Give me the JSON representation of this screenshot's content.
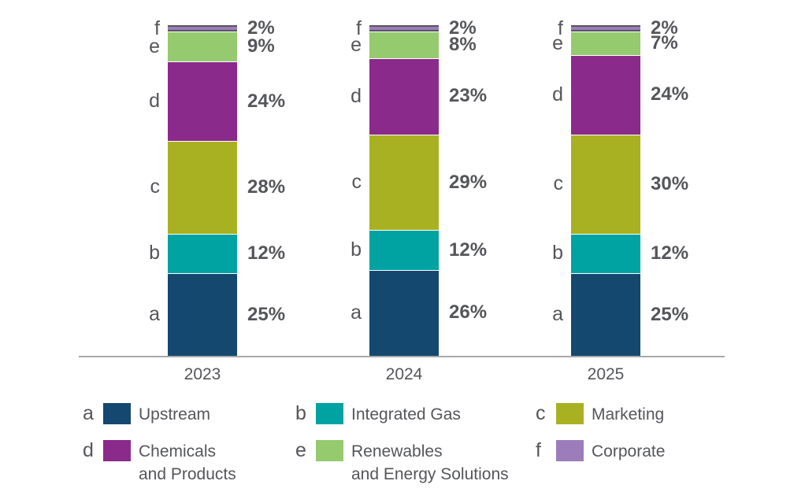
{
  "chart_data": {
    "type": "bar",
    "stacked": true,
    "title": "",
    "unit": "%",
    "categories": [
      "2023",
      "2024",
      "2025"
    ],
    "series": [
      {
        "key": "a",
        "name": "Upstream",
        "color": "#14486f",
        "values": [
          25,
          26,
          25
        ]
      },
      {
        "key": "b",
        "name": "Integrated Gas",
        "color": "#00a3a1",
        "values": [
          12,
          12,
          12
        ]
      },
      {
        "key": "c",
        "name": "Marketing",
        "color": "#a8b122",
        "values": [
          28,
          29,
          30
        ]
      },
      {
        "key": "d",
        "name": "Chemicals\nand Products",
        "color": "#8a2a8b",
        "values": [
          24,
          23,
          24
        ]
      },
      {
        "key": "e",
        "name": "Renewables\nand Energy Solutions",
        "color": "#95ca6e",
        "values": [
          9,
          8,
          7
        ]
      },
      {
        "key": "f",
        "name": "Corporate",
        "color": "#9c7dba",
        "values": [
          2,
          2,
          2
        ]
      }
    ],
    "value_labels": true,
    "legend_position": "bottom",
    "axis_color": "#a7a9ac",
    "text_color": "#55565a",
    "ylim": [
      0,
      100
    ],
    "grid": false
  }
}
